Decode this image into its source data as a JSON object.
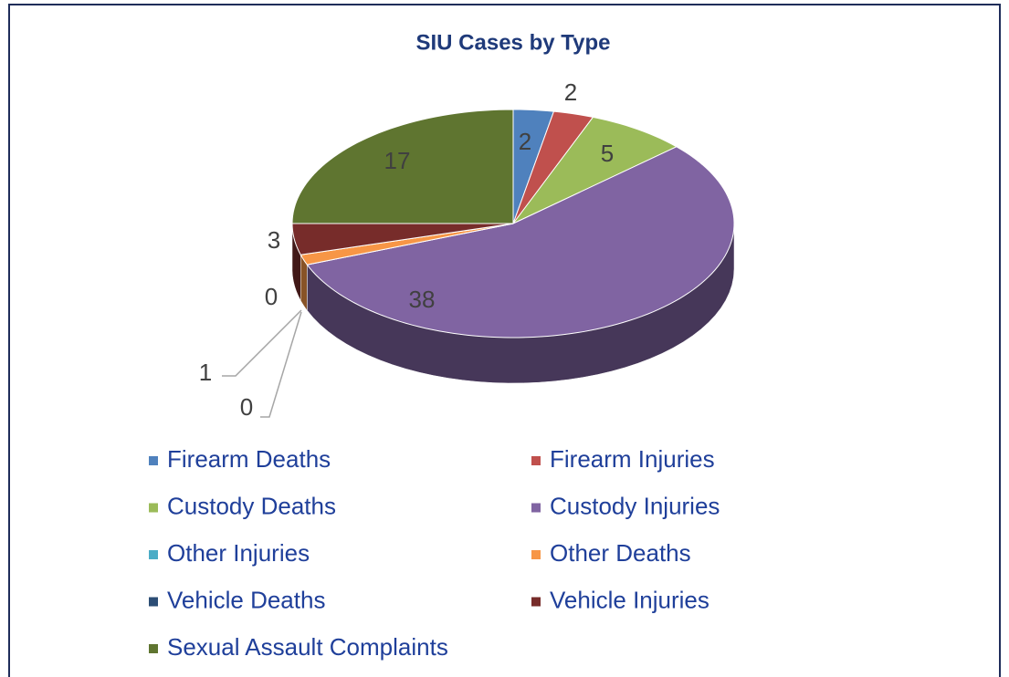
{
  "chart_data": {
    "type": "pie3d",
    "title": "SIU Cases by Type",
    "categories": [
      "Firearm Deaths",
      "Firearm Injuries",
      "Custody Deaths",
      "Custody Injuries",
      "Other Injuries",
      "Other Deaths",
      "Vehicle Deaths",
      "Vehicle Injuries",
      "Sexual Assault Complaints"
    ],
    "values": [
      2,
      2,
      5,
      38,
      0,
      1,
      0,
      3,
      17
    ],
    "colors": [
      "#4f81bd",
      "#c0504d",
      "#9bbb59",
      "#8064a2",
      "#4bacc6",
      "#f79646",
      "#2c4d75",
      "#772c2a",
      "#5f7530"
    ],
    "legend": "bottom"
  }
}
